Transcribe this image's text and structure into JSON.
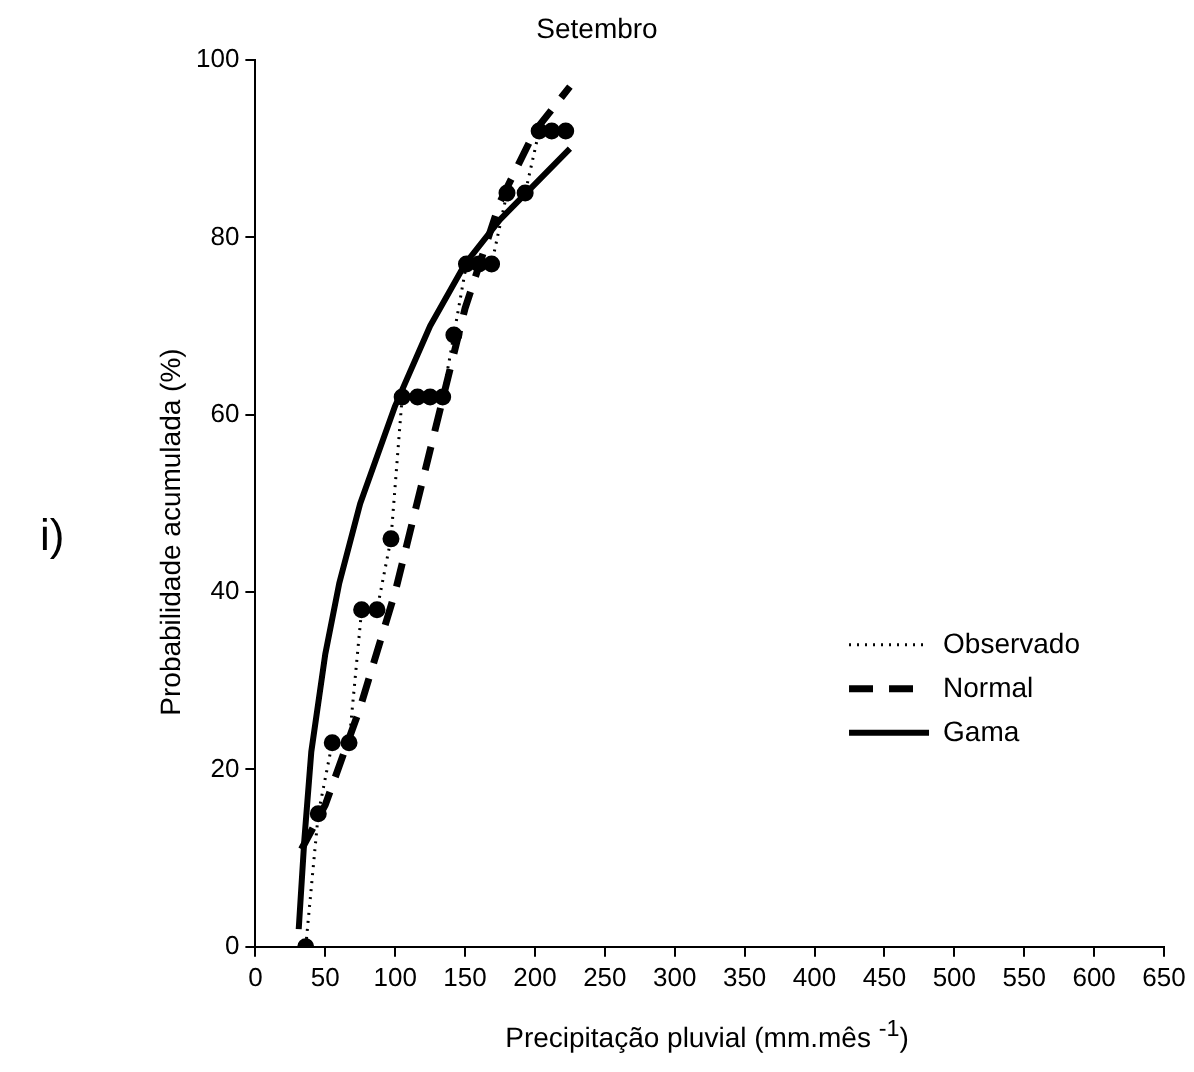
{
  "chart_data": {
    "type": "line",
    "title": "Setembro",
    "xlabel": "Precipitação pluvial (mm.mês $^{-1}$)",
    "ylabel": "Probabilidade acumulada (%)",
    "annotations": [
      "i)"
    ],
    "xlim": [
      0,
      650
    ],
    "xticks": [
      0,
      50,
      100,
      150,
      200,
      250,
      300,
      350,
      400,
      450,
      500,
      550,
      600,
      650
    ],
    "ylim": [
      0,
      100
    ],
    "yticks": [
      0,
      20,
      40,
      60,
      80,
      100
    ],
    "grid": false,
    "legend": "bottom right",
    "series": [
      {
        "name": "Observado",
        "color": "#000000",
        "marker": "circle",
        "line_style": "dotted",
        "x": [
          36,
          45,
          55,
          67,
          76,
          87,
          97,
          105,
          116,
          125,
          134,
          142,
          151,
          160,
          169,
          180,
          193,
          203,
          212,
          222
        ],
        "values": [
          0,
          15,
          23,
          23,
          38,
          38,
          46,
          62,
          62,
          62,
          62,
          69,
          77,
          77,
          77,
          85,
          85,
          92,
          92,
          92
        ]
      },
      {
        "name": "Normal",
        "color": "#000000",
        "marker": "none",
        "line_style": "dashed",
        "x": [
          33,
          50,
          75,
          100,
          125,
          150,
          175,
          200,
          225
        ],
        "values": [
          11,
          16,
          27,
          40,
          56,
          72,
          84,
          92,
          97
        ]
      },
      {
        "name": "Gama",
        "color": "#000000",
        "marker": "none",
        "line_style": "solid",
        "x": [
          31,
          35,
          40,
          50,
          60,
          75,
          100,
          125,
          150,
          175,
          200,
          225
        ],
        "values": [
          2,
          12,
          22,
          33,
          41,
          50,
          61,
          70,
          77,
          82,
          86,
          90
        ]
      }
    ]
  }
}
